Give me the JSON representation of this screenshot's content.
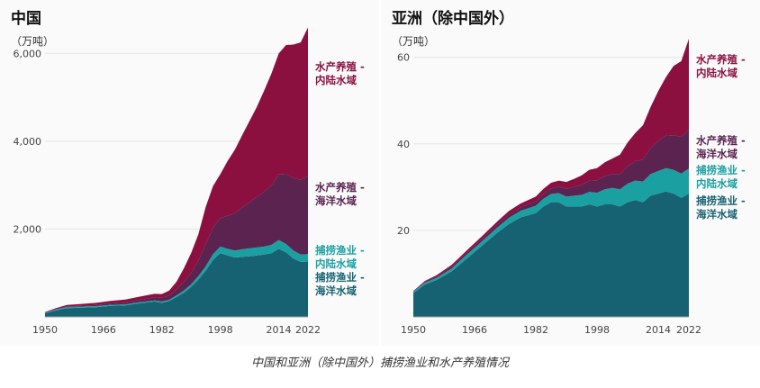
{
  "caption": "中国和亚洲（除中国外）捕捞渔业和水产养殖情况",
  "colors": {
    "aquaculture_inland": "#8b1040",
    "aquaculture_marine": "#5a2350",
    "capture_inland": "#1ba0a2",
    "capture_marine": "#176272"
  },
  "chart_data": [
    {
      "type": "area",
      "stacked": true,
      "title": "中国",
      "ylabel": "（万吨）",
      "ylim": [
        0,
        6600
      ],
      "x_range": [
        1950,
        2022
      ],
      "x_ticks": [
        "1950",
        "1966",
        "1982",
        "1998",
        "2014",
        "2022"
      ],
      "y_ticks": [
        2000,
        4000,
        6000
      ],
      "y_tick_labels": [
        "2,000",
        "4,000",
        "6,000"
      ],
      "x": [
        1950,
        1953,
        1956,
        1960,
        1964,
        1968,
        1972,
        1975,
        1978,
        1980,
        1982,
        1984,
        1986,
        1988,
        1990,
        1992,
        1994,
        1996,
        1998,
        2000,
        2002,
        2004,
        2006,
        2008,
        2010,
        2012,
        2014,
        2016,
        2018,
        2020,
        2022
      ],
      "series": [
        {
          "name": "捕捞渔业 - 海洋水域",
          "color_key": "capture_marine",
          "values": [
            80,
            150,
            200,
            210,
            220,
            250,
            260,
            300,
            330,
            350,
            320,
            360,
            450,
            550,
            680,
            850,
            1050,
            1300,
            1450,
            1400,
            1350,
            1370,
            1380,
            1400,
            1420,
            1450,
            1550,
            1470,
            1330,
            1250,
            1260
          ]
        },
        {
          "name": "捕捞渔业 - 内陆水域",
          "color_key": "capture_inland",
          "values": [
            15,
            20,
            25,
            25,
            25,
            25,
            25,
            25,
            25,
            25,
            30,
            30,
            40,
            50,
            60,
            80,
            100,
            130,
            150,
            150,
            160,
            170,
            180,
            180,
            180,
            190,
            200,
            190,
            180,
            170,
            170
          ]
        },
        {
          "name": "水产养殖 - 海洋水域",
          "color_key": "aquaculture_marine",
          "values": [
            5,
            10,
            15,
            20,
            25,
            30,
            40,
            50,
            60,
            70,
            80,
            100,
            130,
            200,
            260,
            350,
            500,
            600,
            650,
            750,
            850,
            950,
            1050,
            1150,
            1250,
            1350,
            1500,
            1600,
            1650,
            1700,
            1780
          ]
        },
        {
          "name": "水产养殖 - 内陆水域",
          "color_key": "aquaculture_inland",
          "values": [
            10,
            20,
            30,
            40,
            50,
            60,
            70,
            70,
            80,
            80,
            90,
            110,
            180,
            300,
            450,
            600,
            850,
            950,
            1000,
            1250,
            1450,
            1650,
            1850,
            2050,
            2300,
            2550,
            2750,
            2930,
            3040,
            3130,
            3380
          ]
        }
      ]
    },
    {
      "type": "area",
      "stacked": true,
      "title": "亚洲（除中国外）",
      "ylabel": "（万吨）",
      "ylim": [
        0,
        67
      ],
      "x_range": [
        1950,
        2022
      ],
      "x_ticks": [
        "1950",
        "1966",
        "1982",
        "1998",
        "2014",
        "2022"
      ],
      "y_ticks": [
        20,
        40,
        60
      ],
      "y_tick_labels": [
        "20",
        "40",
        "60"
      ],
      "x": [
        1950,
        1953,
        1956,
        1960,
        1964,
        1968,
        1972,
        1975,
        1978,
        1980,
        1982,
        1984,
        1986,
        1988,
        1990,
        1992,
        1994,
        1996,
        1998,
        2000,
        2002,
        2004,
        2006,
        2008,
        2010,
        2012,
        2014,
        2016,
        2018,
        2020,
        2022
      ],
      "series": [
        {
          "name": "捕捞渔业 - 海洋水域",
          "color_key": "capture_marine",
          "values": [
            5.5,
            7.5,
            8.5,
            10.5,
            13.5,
            16.5,
            19.5,
            21.5,
            23,
            23.5,
            24,
            25.5,
            26.5,
            26.5,
            25.5,
            25.5,
            25.5,
            26,
            25.5,
            26,
            26,
            25.5,
            26.5,
            27,
            26.5,
            28,
            28.5,
            29,
            28.5,
            27.5,
            28.5
          ]
        },
        {
          "name": "捕捞渔业 - 内陆水域",
          "color_key": "capture_inland",
          "values": [
            0.3,
            0.4,
            0.5,
            0.7,
            0.9,
            1.0,
            1.2,
            1.4,
            1.5,
            1.6,
            1.7,
            1.8,
            1.9,
            2.1,
            2.3,
            2.5,
            2.7,
            2.9,
            3.2,
            3.5,
            3.8,
            4.0,
            4.3,
            4.5,
            4.8,
            5.0,
            5.2,
            5.4,
            5.5,
            5.6,
            5.8
          ]
        },
        {
          "name": "水产养殖 - 海洋水域",
          "color_key": "aquaculture_marine",
          "values": [
            0.1,
            0.2,
            0.3,
            0.4,
            0.5,
            0.6,
            0.7,
            0.8,
            0.8,
            0.9,
            1.0,
            1.1,
            1.3,
            1.5,
            1.8,
            2.0,
            2.3,
            2.6,
            2.9,
            3.0,
            3.2,
            3.5,
            4.0,
            4.5,
            5.0,
            6.0,
            7.0,
            7.5,
            8.0,
            8.5,
            9.0
          ]
        },
        {
          "name": "水产养殖 - 内陆水域",
          "color_key": "aquaculture_inland",
          "values": [
            0.1,
            0.2,
            0.3,
            0.4,
            0.5,
            0.6,
            0.7,
            0.8,
            0.9,
            1.0,
            1.1,
            1.2,
            1.3,
            1.4,
            1.6,
            1.9,
            2.2,
            2.5,
            2.8,
            3.2,
            3.6,
            4.5,
            5.5,
            6.5,
            8.0,
            9.5,
            11.5,
            13.5,
            16,
            17.5,
            21
          ]
        }
      ]
    }
  ]
}
